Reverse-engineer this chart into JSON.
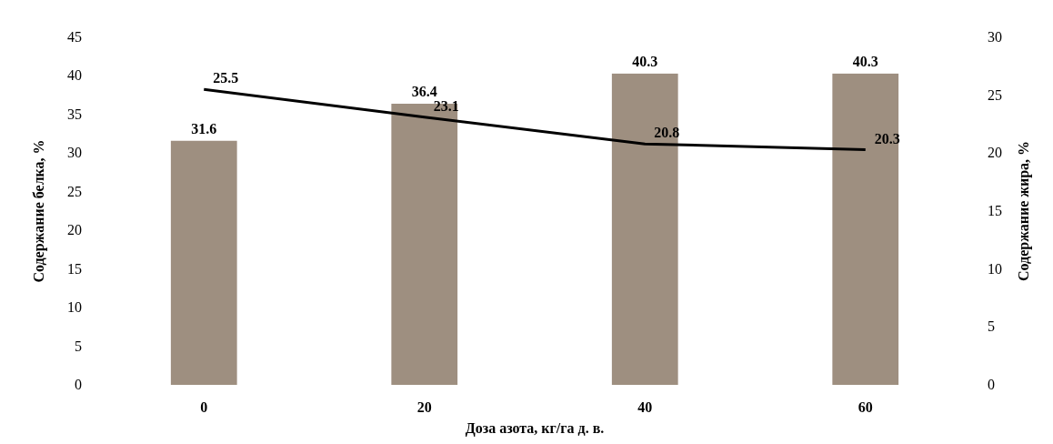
{
  "chart_data": {
    "type": "bar",
    "xlabel": "Доза азота, кг/га д. в.",
    "ylabel": "Содержание белка, %",
    "y2label": "Содержание жира, %",
    "categories": [
      "0",
      "20",
      "40",
      "60"
    ],
    "series": [
      {
        "color": "#9e8f80",
        "values": [
          31.6,
          36.4,
          40.3,
          40.3
        ]
      },
      {
        "type": "line",
        "axis": "y2",
        "color": "#000000",
        "values": [
          25.5,
          23.1,
          20.8,
          20.3
        ]
      }
    ],
    "ylim": [
      0,
      45
    ],
    "yticks": [
      0,
      5,
      10,
      15,
      20,
      25,
      30,
      35,
      40,
      45
    ],
    "y2lim": [
      0,
      30
    ],
    "y2ticks": [
      0,
      5,
      10,
      15,
      20,
      25,
      30
    ],
    "data_labels": true,
    "grid": false,
    "marker": "none",
    "line_style": "solid"
  }
}
